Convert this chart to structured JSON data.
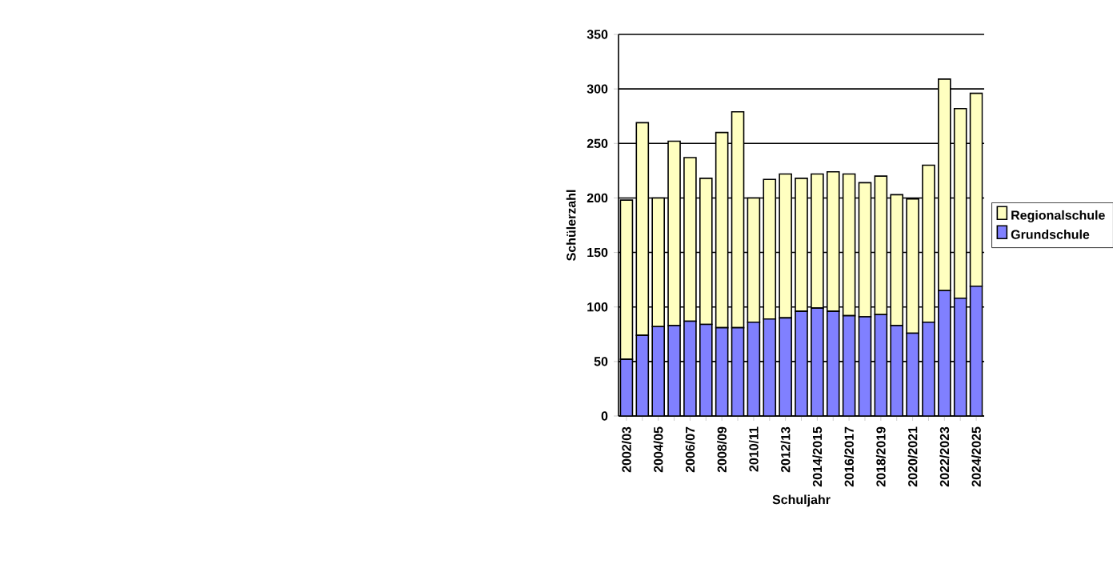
{
  "chart_data": {
    "type": "bar",
    "stacked": true,
    "xlabel": "Schuljahr",
    "ylabel": "Schülerzahl",
    "categories": [
      "2002/03",
      null,
      "2004/05",
      null,
      "2006/07",
      null,
      "2008/09",
      null,
      "2010/11",
      null,
      "2012/13",
      null,
      "2014/2015",
      null,
      "2016/2017",
      null,
      "2018/2019",
      null,
      "2020/2021",
      null,
      "2022/2023",
      null,
      "2024/2025"
    ],
    "series": [
      {
        "name": "Grundschule",
        "color": "#8080ff",
        "values": [
          52,
          74,
          82,
          83,
          87,
          84,
          81,
          81,
          86,
          89,
          90,
          96,
          99,
          96,
          92,
          91,
          93,
          83,
          76,
          86,
          115,
          108,
          119
        ]
      },
      {
        "name": "Regionalschule",
        "color": "#ffffc0",
        "values": [
          146,
          195,
          118,
          169,
          150,
          134,
          179,
          198,
          114,
          128,
          132,
          122,
          123,
          128,
          130,
          123,
          127,
          120,
          123,
          144,
          194,
          174,
          177
        ]
      }
    ],
    "ylim": [
      0,
      350
    ],
    "yticks": [
      0,
      50,
      100,
      150,
      200,
      250,
      300,
      350
    ],
    "grid": "y",
    "legend": "right"
  }
}
